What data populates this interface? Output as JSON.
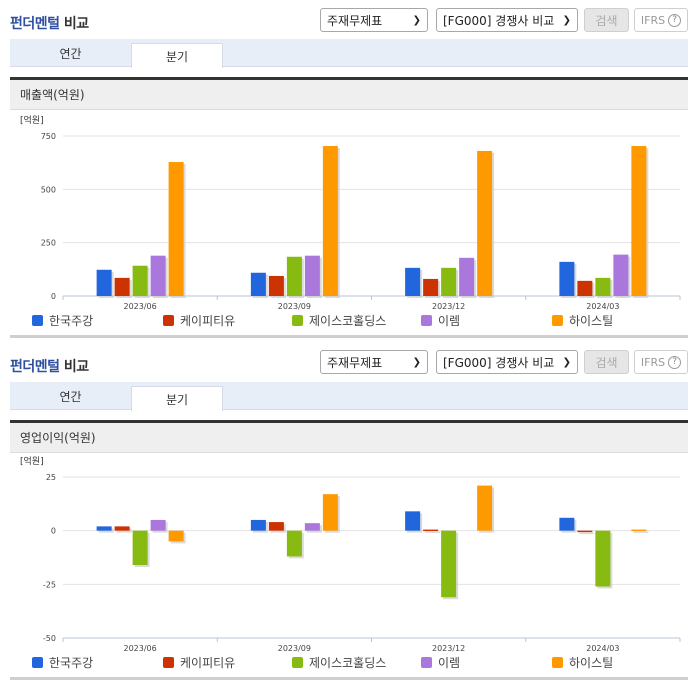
{
  "sections": [
    {
      "title_accent": "펀더멘털",
      "title_rest": " 비교",
      "select1": "주재무제표",
      "select2": "[FG000] 경쟁사 비교",
      "search_label": "검색",
      "ifrs_label": "IFRS",
      "ifrs_help": "?",
      "tabs": [
        {
          "label": "연간",
          "active": false
        },
        {
          "label": "분기",
          "active": true
        }
      ],
      "subheader": "매출액(억원)",
      "unit": "[억원]"
    },
    {
      "title_accent": "펀더멘털",
      "title_rest": " 비교",
      "select1": "주재무제표",
      "select2": "[FG000] 경쟁사 비교",
      "search_label": "검색",
      "ifrs_label": "IFRS",
      "ifrs_help": "?",
      "tabs": [
        {
          "label": "연간",
          "active": false
        },
        {
          "label": "분기",
          "active": true
        }
      ],
      "subheader": "영업이익(억원)",
      "unit": "[억원]"
    }
  ],
  "legend": [
    {
      "name": "한국주강",
      "color": "#2266dd"
    },
    {
      "name": "케이피티유",
      "color": "#cc3300"
    },
    {
      "name": "제이스코홀딩스",
      "color": "#88bb11"
    },
    {
      "name": "이렘",
      "color": "#aa77dd"
    },
    {
      "name": "하이스틸",
      "color": "#ff9900"
    }
  ],
  "chart_data": [
    {
      "type": "bar",
      "title": "매출액(억원)",
      "ylabel": "[억원]",
      "xlabel": "",
      "categories": [
        "2023/06",
        "2023/09",
        "2023/12",
        "2024/03"
      ],
      "yticks": [
        0,
        250,
        500,
        750
      ],
      "ylim": [
        0,
        750
      ],
      "grid": true,
      "legend_position": "bottom",
      "series": [
        {
          "name": "한국주강",
          "color": "#2266dd",
          "values": [
            123,
            109,
            132,
            160
          ]
        },
        {
          "name": "케이피티유",
          "color": "#cc3300",
          "values": [
            85,
            94,
            80,
            71
          ]
        },
        {
          "name": "제이스코홀딩스",
          "color": "#88bb11",
          "values": [
            142,
            184,
            132,
            85
          ]
        },
        {
          "name": "이렘",
          "color": "#aa77dd",
          "values": [
            189,
            189,
            179,
            194
          ]
        },
        {
          "name": "하이스틸",
          "color": "#ff9900",
          "values": [
            628,
            703,
            680,
            703
          ]
        }
      ]
    },
    {
      "type": "bar",
      "title": "영업이익(억원)",
      "ylabel": "[억원]",
      "xlabel": "",
      "categories": [
        "2023/06",
        "2023/09",
        "2023/12",
        "2024/03"
      ],
      "yticks": [
        -50,
        -25,
        0,
        25
      ],
      "ylim": [
        -50,
        25
      ],
      "grid": true,
      "legend_position": "bottom",
      "series": [
        {
          "name": "한국주강",
          "color": "#2266dd",
          "values": [
            2,
            5,
            9,
            6
          ]
        },
        {
          "name": "케이피티유",
          "color": "#cc3300",
          "values": [
            2,
            4,
            0.5,
            -0.3
          ]
        },
        {
          "name": "제이스코홀딩스",
          "color": "#88bb11",
          "values": [
            -16,
            -12,
            -31,
            -26
          ]
        },
        {
          "name": "이렘",
          "color": "#aa77dd",
          "values": [
            5,
            3.5,
            0,
            0
          ]
        },
        {
          "name": "하이스틸",
          "color": "#ff9900",
          "values": [
            -5,
            17,
            21,
            0.5
          ]
        }
      ]
    }
  ]
}
